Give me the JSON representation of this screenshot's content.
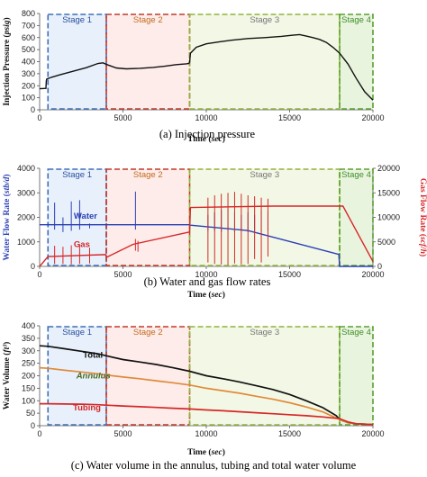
{
  "colors": {
    "stage1": "#3d6fb8",
    "stage2": "#c0392b",
    "stage3": "#8fb33a",
    "stage4": "#5aa02c",
    "stage1_fill": "#e8f1fb",
    "stage2_fill": "#fdecea",
    "stage3_fill": "#f3f8e6",
    "stage4_fill": "#e9f4df",
    "water": "#2a3fb5",
    "gas": "#d62728",
    "total": "#111111",
    "annulus": "#e08a3a",
    "tubing": "#d62728",
    "stage1_text": "#2a4fa0",
    "stage2_text": "#c46a1e",
    "stage3_text": "#777777",
    "stage4_text": "#3f8f2a"
  },
  "stages": [
    {
      "label": "Stage 1",
      "start": 500,
      "end": 4000
    },
    {
      "label": "Stage 2",
      "start": 4000,
      "end": 9000
    },
    {
      "label": "Stage 3",
      "start": 9000,
      "end": 18000
    },
    {
      "label": "Stage 4",
      "start": 18000,
      "end": 20000
    }
  ],
  "chart_data": [
    {
      "type": "line",
      "caption_prefix": "(a) Injection pressure",
      "ylabel_main": "Injection Pressure (",
      "ylabel_unit": "psig",
      "ylabel_end": ")",
      "xlabel_main": "Time (",
      "xlabel_unit": "sec",
      "xlabel_end": ")",
      "xlim": [
        0,
        20000
      ],
      "ylim": [
        0,
        800
      ],
      "xticks": [
        "0",
        "5000",
        "10000",
        "15000",
        "20000"
      ],
      "yticks": [
        "0",
        "100",
        "200",
        "300",
        "400",
        "500",
        "600",
        "700",
        "800"
      ],
      "series": [
        {
          "x": [
            0,
            380,
            400,
            420,
            700,
            1200,
            2000,
            2800,
            3500,
            3800,
            4100,
            4600,
            5200,
            6000,
            6800,
            7500,
            8200,
            8800,
            8950,
            9000,
            9050,
            9400,
            10000,
            10800,
            11500,
            12500,
            13500,
            14500,
            15200,
            15600,
            16000,
            16400,
            16800,
            17200,
            17600,
            18000,
            18500,
            19000,
            19500,
            20000
          ],
          "y": [
            175,
            178,
            240,
            255,
            270,
            290,
            320,
            350,
            385,
            390,
            372,
            348,
            340,
            345,
            352,
            362,
            375,
            382,
            385,
            395,
            470,
            520,
            548,
            565,
            578,
            592,
            600,
            610,
            620,
            625,
            612,
            600,
            585,
            560,
            520,
            470,
            380,
            260,
            150,
            80
          ]
        }
      ]
    },
    {
      "type": "line",
      "caption_prefix": "(b) Water and gas flow rates",
      "ylabel_main": "Water Flow Rate (",
      "ylabel_unit": "stb/d",
      "ylabel_end": ")",
      "y2label_main": "Gas Flow Rate (",
      "y2label_unit": "scf/h",
      "y2label_end": ")",
      "xlabel_main": "Time (",
      "xlabel_unit": "sec",
      "xlabel_end": ")",
      "xlim": [
        0,
        20000
      ],
      "ylim": [
        0,
        4000
      ],
      "y2lim": [
        0,
        20000
      ],
      "xticks": [
        "0",
        "5000",
        "10000",
        "15000",
        "20000"
      ],
      "yticks": [
        "0",
        "1000",
        "2000",
        "3000",
        "4000"
      ],
      "y2ticks": [
        "0",
        "5000",
        "10000",
        "15000",
        "20000"
      ],
      "annotations": [
        {
          "text": "Water",
          "x": 2050,
          "y": 1950
        },
        {
          "text": "Gas",
          "x": 2050,
          "y": 780
        }
      ],
      "series": [
        {
          "name": "Water",
          "axis": "left",
          "x": [
            0,
            9000,
            9050,
            12500,
            17900,
            17950,
            18000,
            20000
          ],
          "y": [
            1700,
            1700,
            1680,
            1460,
            500,
            500,
            0,
            0
          ],
          "spikes_x": [
            900,
            1400,
            1900,
            2400,
            3000,
            5750,
            10100,
            10500,
            10900,
            11300,
            11700,
            12100,
            12500,
            12900,
            13300,
            13700
          ],
          "spikes_up": [
            2600,
            2000,
            2650,
            2700,
            1750,
            3050,
            2100,
            2200,
            2300,
            2350,
            2200,
            2100,
            2200,
            2100,
            2300,
            2250
          ],
          "spikes_down": [
            1500,
            1400,
            1450,
            1500,
            1550,
            1500,
            1450,
            1450,
            1400,
            1450,
            1400,
            1450,
            1400,
            1450,
            1400,
            1450
          ]
        },
        {
          "name": "Gas",
          "axis": "right",
          "x": [
            0,
            500,
            3950,
            4050,
            5600,
            8950,
            9000,
            9050,
            14000,
            15500,
            17900,
            18200,
            20000
          ],
          "y": [
            0,
            2000,
            2400,
            1900,
            4500,
            7000,
            7000,
            12000,
            12300,
            12300,
            12300,
            12300,
            1000
          ],
          "spikes_x": [
            900,
            1400,
            1900,
            2400,
            3000,
            5750,
            5900,
            10100,
            10500,
            10900,
            11300,
            11700,
            12100,
            12500,
            12900,
            13300,
            13700
          ],
          "spikes_up": [
            4200,
            4000,
            4300,
            4400,
            3800,
            5600,
            5200,
            14000,
            14500,
            14800,
            15000,
            15200,
            14800,
            14500,
            14300,
            14000,
            13800
          ],
          "spikes_down": [
            500,
            500,
            400,
            500,
            600,
            3200,
            3000,
            800,
            500,
            400,
            300,
            600,
            400,
            500,
            1500,
            800,
            2000
          ]
        }
      ]
    },
    {
      "type": "line",
      "caption_prefix": "(c) Water volume in the annulus, tubing and total water volume",
      "ylabel_main": "Water Volume (",
      "ylabel_unit": "ft³",
      "ylabel_end": ")",
      "xlabel_main": "Time (",
      "xlabel_unit": "sec",
      "xlabel_end": ")",
      "xlim": [
        0,
        20000
      ],
      "ylim": [
        0,
        400
      ],
      "xticks": [
        "0",
        "5000",
        "10000",
        "15000",
        "20000"
      ],
      "yticks": [
        "0",
        "50",
        "100",
        "150",
        "200",
        "250",
        "300",
        "350",
        "400"
      ],
      "annotations": [
        {
          "text": "Total",
          "x": 2600,
          "y": 272
        },
        {
          "text": "Annulus",
          "x": 2200,
          "y": 190
        },
        {
          "text": "Tubing",
          "x": 2000,
          "y": 62
        }
      ],
      "series": [
        {
          "name": "Total",
          "x": [
            0,
            500,
            1500,
            2500,
            3500,
            4000,
            5000,
            6000,
            7000,
            8000,
            9000,
            10000,
            11000,
            12000,
            13000,
            14000,
            15000,
            16000,
            17000,
            17800,
            18000,
            18500,
            19000,
            20000
          ],
          "y": [
            320,
            318,
            308,
            298,
            288,
            280,
            265,
            255,
            245,
            232,
            218,
            200,
            188,
            175,
            160,
            145,
            125,
            100,
            72,
            40,
            25,
            12,
            8,
            5
          ]
        },
        {
          "name": "Annulus",
          "x": [
            0,
            500,
            1500,
            2500,
            3500,
            4000,
            5000,
            6000,
            7000,
            8000,
            9000,
            10000,
            11000,
            12000,
            13000,
            14000,
            15000,
            16000,
            17000,
            18000,
            18500,
            19000,
            20000
          ],
          "y": [
            232,
            230,
            222,
            215,
            208,
            203,
            195,
            188,
            180,
            172,
            163,
            150,
            140,
            130,
            118,
            106,
            92,
            75,
            55,
            25,
            12,
            8,
            5
          ]
        },
        {
          "name": "Tubing",
          "x": [
            0,
            500,
            1500,
            2500,
            3500,
            4000,
            5000,
            6000,
            7000,
            8000,
            9000,
            10000,
            11000,
            12000,
            13000,
            14000,
            15000,
            16000,
            17000,
            18000,
            18500,
            19000,
            20000
          ],
          "y": [
            88,
            88,
            87,
            86,
            84,
            82,
            79,
            76,
            73,
            70,
            67,
            63,
            60,
            56,
            52,
            48,
            44,
            40,
            35,
            28,
            15,
            8,
            4
          ]
        }
      ]
    }
  ]
}
